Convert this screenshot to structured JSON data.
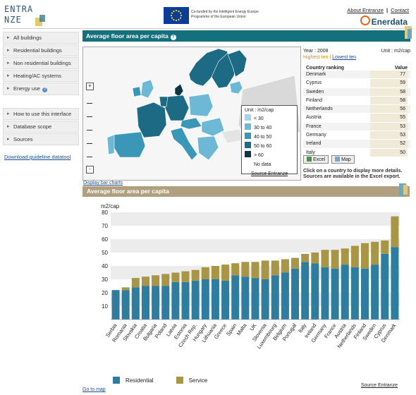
{
  "header": {
    "logo_line1": "ENTRA",
    "logo_line2": "NZE",
    "eu_text_line1": "Co-funded by the Intelligent Energy Europe",
    "eu_text_line2": "Programme of the European Union",
    "links": [
      "About Entranze",
      "Contact"
    ],
    "partner": "Enerdata"
  },
  "sidebar": {
    "group1": [
      {
        "label": "All buildings"
      },
      {
        "label": "Residential buildings"
      },
      {
        "label": "Non residential buildings"
      },
      {
        "label": "Heating/AC systems"
      },
      {
        "label": "Energy use",
        "help": "?"
      }
    ],
    "group2": [
      {
        "label": "How to use this interface"
      },
      {
        "label": "Database scope"
      },
      {
        "label": "Sources"
      }
    ],
    "download_link": "Download guideline datatool"
  },
  "map_panel": {
    "title": "Average floor area per capita",
    "help": "?",
    "legend_title": "Unit : m2/cap",
    "legend": [
      {
        "label": "< 30",
        "color": "#a9d3e6"
      },
      {
        "label": "30 to 40",
        "color": "#6db8d4"
      },
      {
        "label": "40 to 50",
        "color": "#3a97b8"
      },
      {
        "label": "50 to 60",
        "color": "#1c6a84"
      },
      {
        "label": "> 60",
        "color": "#0f3644"
      },
      {
        "label": "No data",
        "color": "#ffffff"
      }
    ],
    "legend_source": "Source Entranze",
    "zoom_in": "+",
    "zoom_out": "-"
  },
  "ranking": {
    "year_label": "Year : 2008",
    "unit_label": "Unit : m2/cap",
    "highest": "Highest ten",
    "lowest": "Lowest ten",
    "separator": "|",
    "col_country": "Country ranking",
    "col_value": "Value",
    "rows": [
      {
        "country": "Denmark",
        "value": "77"
      },
      {
        "country": "Cyprus",
        "value": "59"
      },
      {
        "country": "Sweden",
        "value": "58"
      },
      {
        "country": "Finland",
        "value": "58"
      },
      {
        "country": "Netherlands",
        "value": "56"
      },
      {
        "country": "Austria",
        "value": "55"
      },
      {
        "country": "France",
        "value": "53"
      },
      {
        "country": "Germany",
        "value": "53"
      },
      {
        "country": "Ireland",
        "value": "52"
      },
      {
        "country": "Italy",
        "value": "50"
      }
    ],
    "excel_button": "Excel",
    "map_button": "Map",
    "note_line1": "Click on a country to display more details.",
    "note_line2": "Sources are available in the Excel export."
  },
  "display_bar_charts": "Display bar charts",
  "chart_panel": {
    "title": "Average floor area per capita",
    "go_to_map": "Go to map",
    "source": "Source Entranze"
  },
  "chart_data": {
    "type": "bar",
    "stacked": true,
    "ylabel": "m2/cap",
    "ylim": [
      0,
      80
    ],
    "yticks": [
      10,
      20,
      30,
      40,
      50,
      60,
      70,
      80
    ],
    "legend_placement": "bottom",
    "categories": [
      "Serbia",
      "Romania",
      "Slovakia",
      "Croatia",
      "Bulgaria",
      "Poland",
      "Latvia",
      "Estonia",
      "Czech Rep.",
      "Hungary",
      "Lithuania",
      "Greece",
      "Spain",
      "Malta",
      "UK",
      "Slovenia",
      "Luxembourg",
      "Belgium",
      "Portugal",
      "Italy",
      "Ireland",
      "Germany",
      "France",
      "Austria",
      "Netherlands",
      "Finland",
      "Sweden",
      "Cyprus",
      "Denmark"
    ],
    "series": [
      {
        "name": "Residential",
        "color": "#2f7d9e",
        "values": [
          22,
          22,
          24,
          25,
          25,
          25,
          28,
          28,
          29,
          30,
          30,
          29,
          33,
          32,
          31,
          30,
          33,
          35,
          38,
          43,
          42,
          39,
          38,
          41,
          39,
          38,
          41,
          49,
          54
        ]
      },
      {
        "name": "Service",
        "color": "#a89546",
        "values": [
          0,
          2,
          7,
          7,
          8,
          9,
          7,
          8,
          8,
          9,
          10,
          12,
          9,
          11,
          12,
          14,
          11,
          10,
          8,
          6,
          8,
          13,
          14,
          12,
          16,
          19,
          17,
          10,
          23
        ]
      }
    ]
  }
}
